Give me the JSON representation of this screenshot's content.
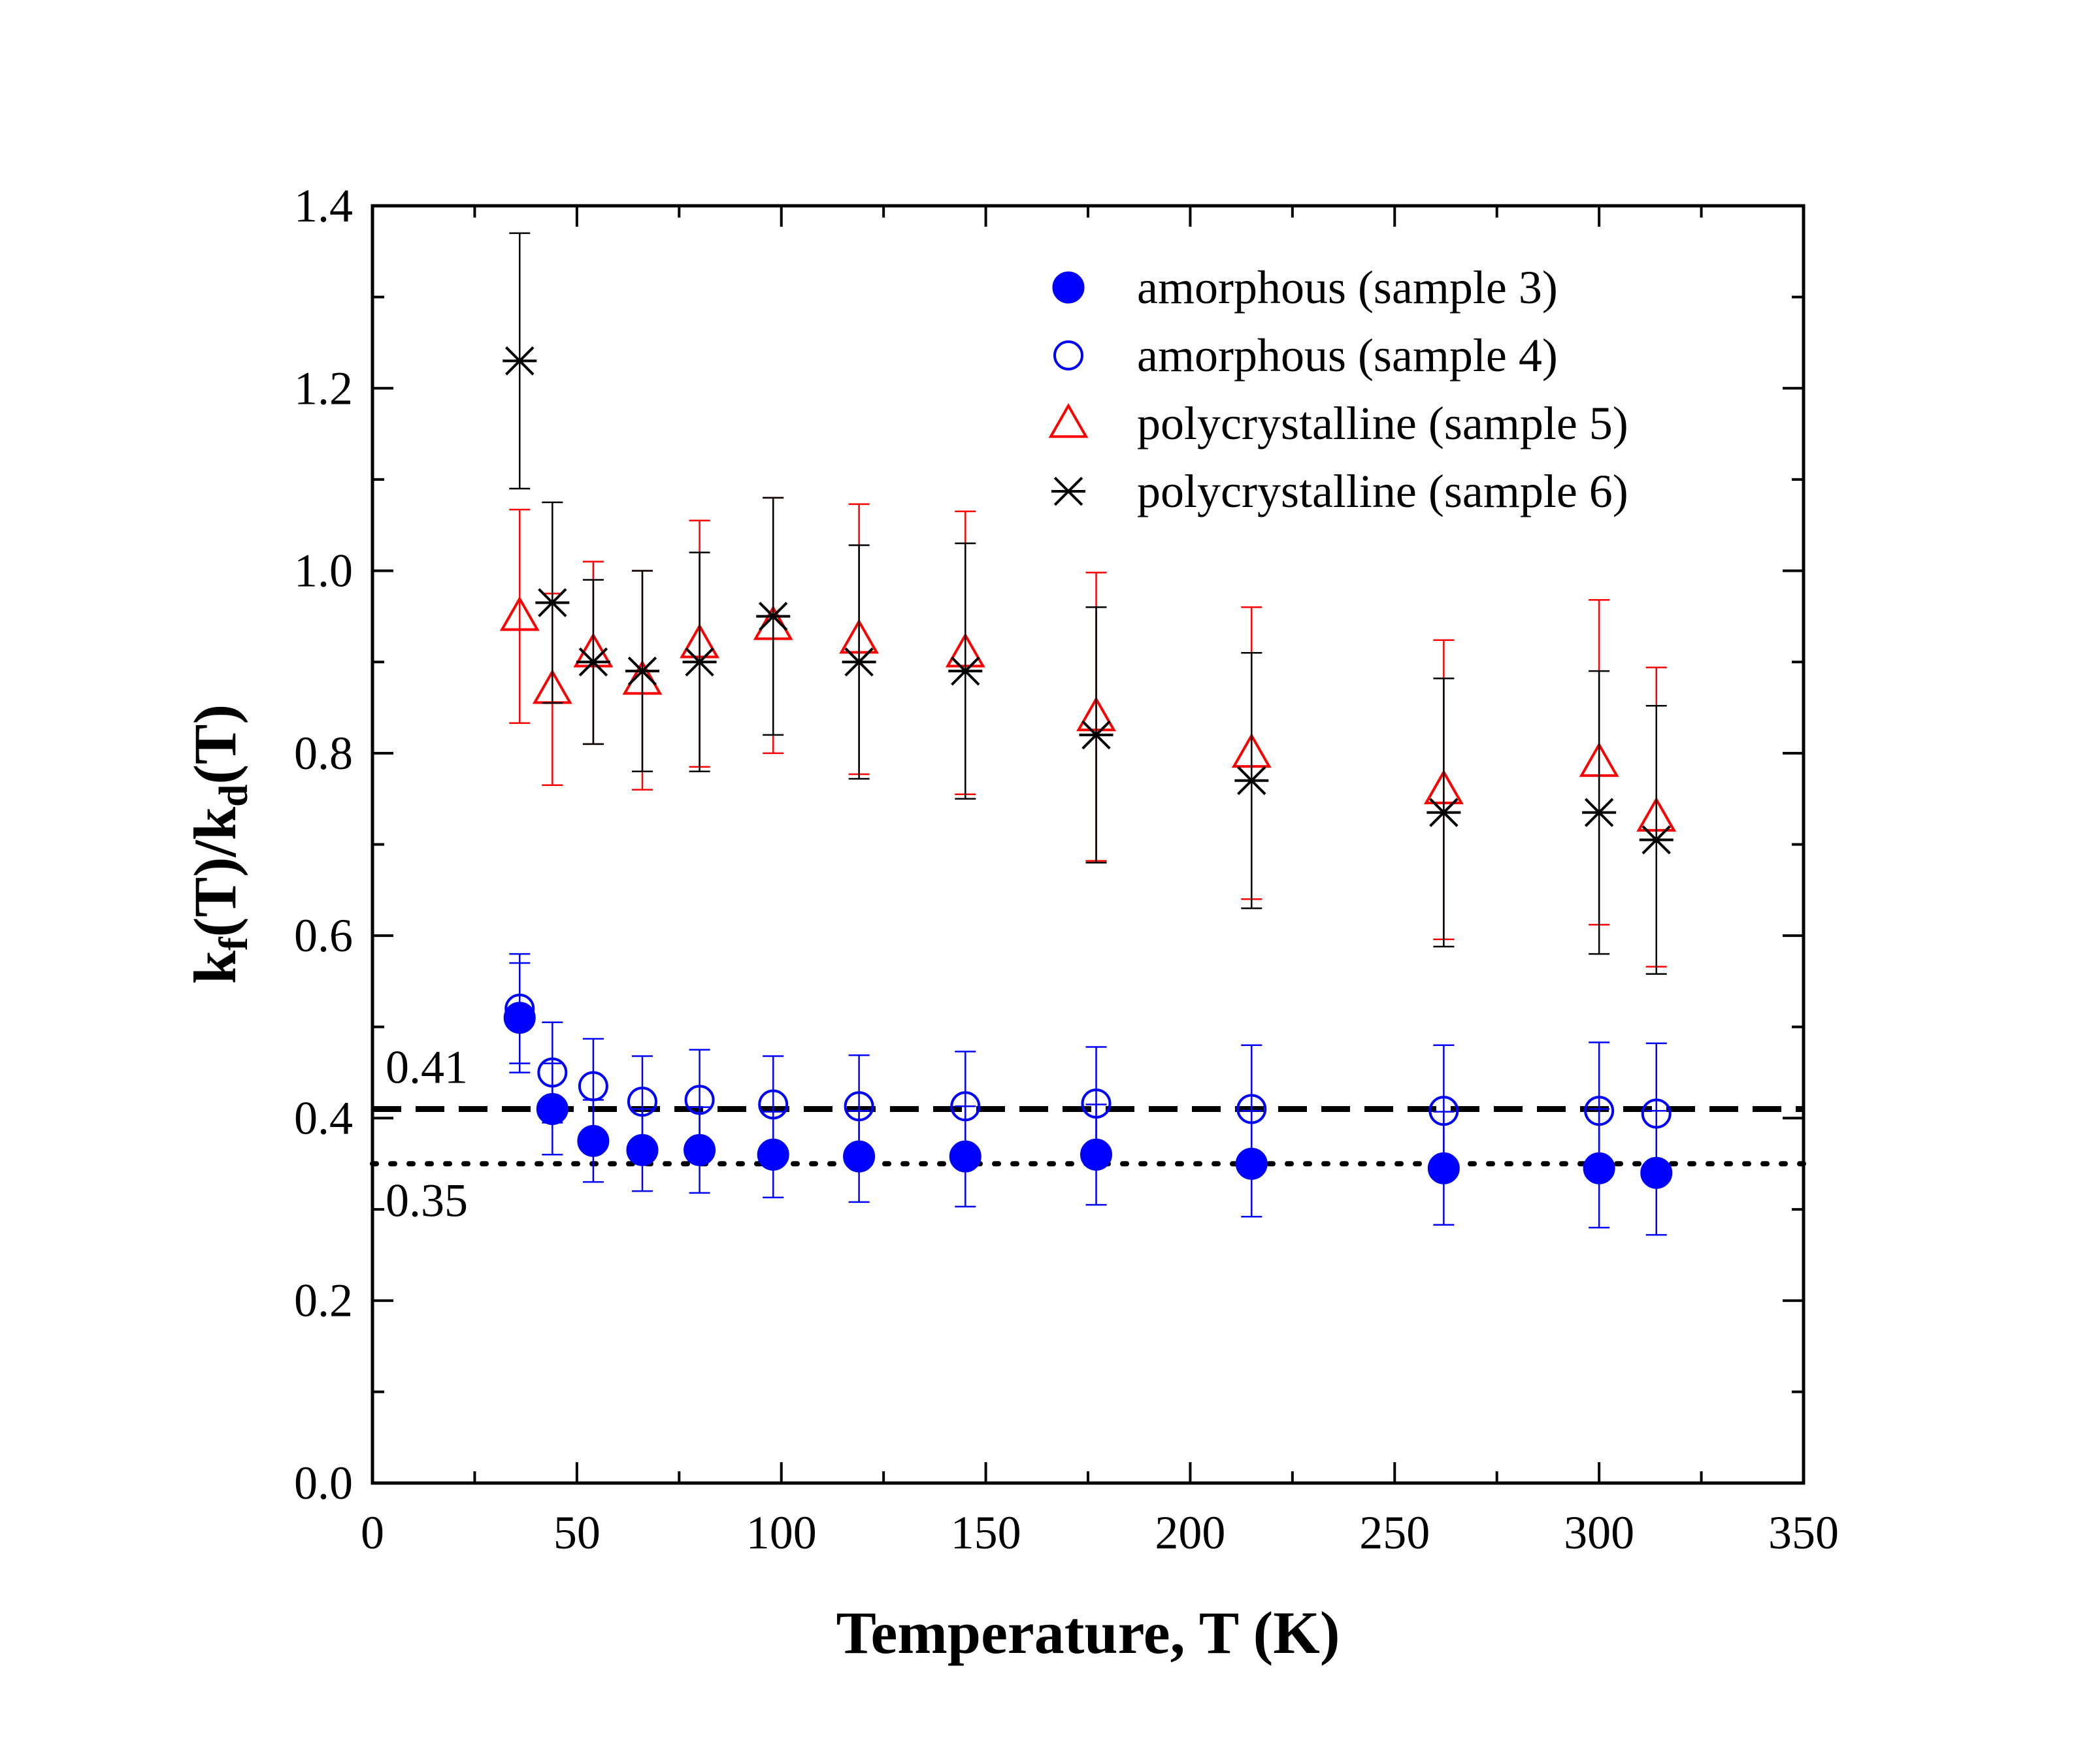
{
  "chart_data": {
    "type": "scatter",
    "title": "",
    "xlabel": "Temperature, T (K)",
    "ylabel": {
      "main": "k",
      "sub1": "f",
      "mid": "(T)/k",
      "sub2": "d",
      "end": "(T)"
    },
    "xlim": [
      0,
      350
    ],
    "ylim": [
      0.0,
      1.4
    ],
    "xticks": [
      0,
      50,
      100,
      150,
      200,
      250,
      300,
      350
    ],
    "xtick_labels": [
      "0",
      "50",
      "100",
      "150",
      "200",
      "250",
      "300",
      "350"
    ],
    "yticks": [
      0.0,
      0.2,
      0.4,
      0.6,
      0.8,
      1.0,
      1.2,
      1.4
    ],
    "ytick_labels": [
      "0.0",
      "0.2",
      "0.4",
      "0.6",
      "0.8",
      "1.0",
      "1.2",
      "1.4"
    ],
    "grid": false,
    "legend_position": "top-right",
    "reference_lines": [
      {
        "y": 0.41,
        "label": "0.41",
        "style": "dashed",
        "color": "#000000"
      },
      {
        "y": 0.35,
        "label": "0.35",
        "style": "dotted",
        "color": "#000000"
      }
    ],
    "series": [
      {
        "name": "amorphous (sample 3)",
        "marker": "filled-circle",
        "color": "#0000ff",
        "x": [
          36,
          44,
          54,
          66,
          80,
          98,
          119,
          145,
          177,
          215,
          262,
          300,
          314
        ],
        "y": [
          0.51,
          0.41,
          0.375,
          0.365,
          0.365,
          0.36,
          0.358,
          0.358,
          0.36,
          0.35,
          0.345,
          0.345,
          0.34
        ],
        "err": [
          0.06,
          0.05,
          0.045,
          0.045,
          0.047,
          0.047,
          0.05,
          0.055,
          0.055,
          0.058,
          0.062,
          0.065,
          0.068
        ]
      },
      {
        "name": "amorphous (sample 4)",
        "marker": "open-circle",
        "color": "#0000ff",
        "x": [
          36,
          44,
          54,
          66,
          80,
          98,
          119,
          145,
          177,
          215,
          262,
          300,
          314
        ],
        "y": [
          0.52,
          0.45,
          0.435,
          0.418,
          0.42,
          0.415,
          0.413,
          0.413,
          0.416,
          0.41,
          0.408,
          0.408,
          0.405
        ],
        "err": [
          0.06,
          0.055,
          0.052,
          0.05,
          0.055,
          0.053,
          0.056,
          0.06,
          0.062,
          0.07,
          0.072,
          0.075,
          0.077
        ]
      },
      {
        "name": "polycrystalline (sample 5)",
        "marker": "open-triangle",
        "color": "#ff0000",
        "x": [
          36,
          44,
          54,
          66,
          80,
          98,
          119,
          145,
          177,
          215,
          262,
          300,
          314
        ],
        "y": [
          0.95,
          0.87,
          0.91,
          0.88,
          0.92,
          0.94,
          0.925,
          0.91,
          0.84,
          0.8,
          0.76,
          0.79,
          0.73
        ],
        "err": [
          0.117,
          0.105,
          0.1,
          0.12,
          0.135,
          0.14,
          0.148,
          0.155,
          0.158,
          0.16,
          0.164,
          0.178,
          0.164
        ]
      },
      {
        "name": "polycrystalline (sample 6)",
        "marker": "asterisk",
        "color": "#000000",
        "x": [
          36,
          44,
          54,
          66,
          80,
          98,
          119,
          145,
          177,
          215,
          262,
          300,
          314
        ],
        "y": [
          1.23,
          0.965,
          0.9,
          0.89,
          0.9,
          0.95,
          0.9,
          0.89,
          0.82,
          0.77,
          0.735,
          0.735,
          0.705
        ],
        "err": [
          0.14,
          0.11,
          0.09,
          0.11,
          0.12,
          0.13,
          0.128,
          0.14,
          0.14,
          0.14,
          0.147,
          0.155,
          0.147
        ]
      }
    ]
  }
}
